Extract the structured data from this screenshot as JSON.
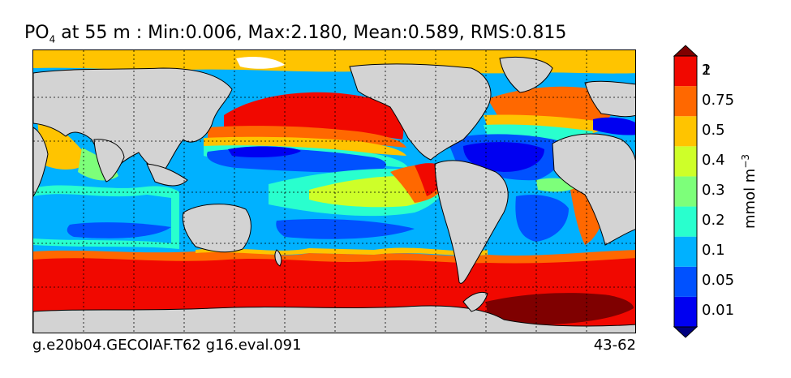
{
  "title": {
    "variable": "PO",
    "subscript": "4",
    "rest": " at 55 m : Min:0.006, Max:2.180, Mean:0.589, RMS:0.815"
  },
  "footer": {
    "case_name": "g.e20b04.GECOIAF.T62 g16.eval.091",
    "years": "43-62"
  },
  "colorbar": {
    "unit": "mmol m",
    "unit_exponent": "−3",
    "levels": [
      {
        "label": "",
        "color": "#00007f"
      },
      {
        "label": "0.01",
        "color": "#0000f1"
      },
      {
        "label": "0.05",
        "color": "#0051ff"
      },
      {
        "label": "0.1",
        "color": "#00b1ff"
      },
      {
        "label": "0.2",
        "color": "#29ffce"
      },
      {
        "label": "0.3",
        "color": "#7dff7a"
      },
      {
        "label": "0.4",
        "color": "#ceff29"
      },
      {
        "label": "0.5",
        "color": "#ffc400"
      },
      {
        "label": "0.75",
        "color": "#ff6800"
      },
      {
        "label": "1",
        "color": "#f10800"
      },
      {
        "label": "2",
        "color": "#7f0000"
      }
    ],
    "land_color": "#d3d3d3"
  }
}
